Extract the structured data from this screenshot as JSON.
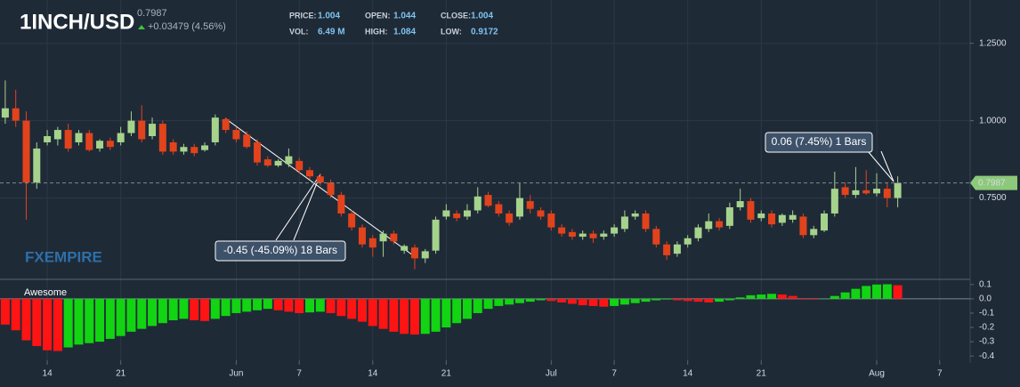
{
  "header": {
    "symbol": "1INCH/USD",
    "price": "0.7987",
    "change": "+0.03479 (4.56%)",
    "stats": [
      {
        "label": "PRICE:",
        "value": "1.004"
      },
      {
        "label": "OPEN:",
        "value": "1.044"
      },
      {
        "label": "CLOSE:",
        "value": "1.004"
      },
      {
        "label": "VOL:",
        "value": "6.49 M"
      },
      {
        "label": "HIGH:",
        "value": "1.084"
      },
      {
        "label": "LOW:",
        "value": "0.9172"
      }
    ],
    "watermark": "FXEMPIRE"
  },
  "chart_data": [
    {
      "type": "candlestick",
      "up_color": "#a6d38c",
      "down_color": "#e2431c",
      "grid": true,
      "open": [
        1.01,
        1.04,
        1.0,
        0.8,
        0.93,
        0.94,
        0.97,
        0.93,
        0.96,
        0.91,
        0.935,
        0.93,
        0.96,
        1.0,
        0.95,
        0.99,
        0.93,
        0.9,
        0.915,
        0.905,
        0.93,
        1.005,
        0.97,
        0.955,
        0.93,
        0.875,
        0.855,
        0.86,
        0.87,
        0.84,
        0.82,
        0.8,
        0.76,
        0.7,
        0.655,
        0.62,
        0.61,
        0.635,
        0.58,
        0.59,
        0.555,
        0.58,
        0.69,
        0.7,
        0.69,
        0.71,
        0.76,
        0.73,
        0.7,
        0.69,
        0.74,
        0.71,
        0.7,
        0.655,
        0.64,
        0.625,
        0.635,
        0.625,
        0.635,
        0.65,
        0.69,
        0.7,
        0.65,
        0.6,
        0.57,
        0.6,
        0.62,
        0.65,
        0.675,
        0.66,
        0.72,
        0.74,
        0.685,
        0.7,
        0.67,
        0.68,
        0.69,
        0.63,
        0.645,
        0.7,
        0.785,
        0.76,
        0.775,
        0.765,
        0.78,
        0.75
      ],
      "high": [
        1.13,
        1.1,
        1.03,
        0.93,
        0.97,
        0.98,
        0.99,
        0.97,
        0.97,
        0.94,
        0.945,
        0.98,
        1.03,
        1.05,
        1.01,
        1.0,
        0.94,
        0.925,
        0.925,
        0.93,
        1.02,
        1.01,
        0.98,
        0.965,
        0.94,
        0.885,
        0.875,
        0.91,
        0.88,
        0.85,
        0.83,
        0.81,
        0.77,
        0.71,
        0.665,
        0.63,
        0.645,
        0.645,
        0.6,
        0.6,
        0.585,
        0.69,
        0.73,
        0.71,
        0.73,
        0.785,
        0.77,
        0.74,
        0.71,
        0.8,
        0.76,
        0.72,
        0.71,
        0.665,
        0.65,
        0.645,
        0.645,
        0.645,
        0.665,
        0.71,
        0.71,
        0.71,
        0.66,
        0.61,
        0.61,
        0.63,
        0.665,
        0.7,
        0.685,
        0.735,
        0.78,
        0.75,
        0.71,
        0.71,
        0.7,
        0.71,
        0.7,
        0.66,
        0.71,
        0.835,
        0.8,
        0.85,
        0.84,
        0.83,
        0.8,
        0.82
      ],
      "low": [
        0.99,
        0.98,
        0.68,
        0.78,
        0.92,
        0.92,
        0.9,
        0.92,
        0.9,
        0.9,
        0.905,
        0.92,
        0.95,
        0.93,
        0.94,
        0.89,
        0.89,
        0.89,
        0.885,
        0.9,
        0.92,
        0.96,
        0.93,
        0.91,
        0.855,
        0.85,
        0.85,
        0.85,
        0.83,
        0.81,
        0.79,
        0.75,
        0.69,
        0.645,
        0.59,
        0.56,
        0.56,
        0.6,
        0.57,
        0.52,
        0.54,
        0.57,
        0.68,
        0.675,
        0.68,
        0.7,
        0.72,
        0.69,
        0.66,
        0.68,
        0.7,
        0.68,
        0.645,
        0.625,
        0.615,
        0.615,
        0.605,
        0.615,
        0.625,
        0.64,
        0.68,
        0.64,
        0.59,
        0.55,
        0.56,
        0.59,
        0.61,
        0.64,
        0.645,
        0.65,
        0.71,
        0.67,
        0.675,
        0.655,
        0.66,
        0.67,
        0.62,
        0.62,
        0.64,
        0.69,
        0.75,
        0.75,
        0.76,
        0.755,
        0.72,
        0.72
      ],
      "close": [
        1.04,
        1.0,
        0.8,
        0.91,
        0.95,
        0.97,
        0.91,
        0.96,
        0.905,
        0.935,
        0.915,
        0.96,
        1.0,
        0.94,
        0.99,
        0.9,
        0.9,
        0.915,
        0.895,
        0.92,
        1.01,
        0.97,
        0.94,
        0.915,
        0.865,
        0.855,
        0.87,
        0.885,
        0.84,
        0.82,
        0.8,
        0.76,
        0.7,
        0.655,
        0.6,
        0.59,
        0.635,
        0.61,
        0.595,
        0.555,
        0.578,
        0.68,
        0.71,
        0.685,
        0.71,
        0.755,
        0.725,
        0.7,
        0.67,
        0.75,
        0.715,
        0.69,
        0.655,
        0.635,
        0.625,
        0.635,
        0.62,
        0.635,
        0.655,
        0.69,
        0.7,
        0.65,
        0.6,
        0.565,
        0.6,
        0.62,
        0.655,
        0.675,
        0.655,
        0.72,
        0.74,
        0.68,
        0.7,
        0.665,
        0.695,
        0.695,
        0.63,
        0.65,
        0.7,
        0.78,
        0.76,
        0.775,
        0.765,
        0.78,
        0.75,
        0.7987
      ],
      "xlim": [
        -0.5,
        91.9
      ],
      "ylim": [
        0.49,
        1.39
      ],
      "yticks": [
        {
          "value": 1.25,
          "label": "1.2500"
        },
        {
          "value": 1.0,
          "label": "1.0000"
        },
        {
          "value": 0.75,
          "label": "0.7500"
        }
      ],
      "xticks": [
        {
          "value": 4,
          "label": "14"
        },
        {
          "value": 11,
          "label": "21"
        },
        {
          "value": 22,
          "label": "Jun"
        },
        {
          "value": 28,
          "label": "7"
        },
        {
          "value": 35,
          "label": "14"
        },
        {
          "value": 42,
          "label": "21"
        },
        {
          "value": 52,
          "label": "Jul"
        },
        {
          "value": 58,
          "label": "7"
        },
        {
          "value": 65,
          "label": "14"
        },
        {
          "value": 72,
          "label": "21"
        },
        {
          "value": 83,
          "label": "Aug"
        },
        {
          "value": 89,
          "label": "7"
        }
      ],
      "last_price": 0.7987,
      "last_price_color": "#8cc97a",
      "annotations": [
        "0.06 (7.45%) 1 Bars",
        "-0.45 (-45.09%) 18 Bars"
      ]
    },
    {
      "type": "bar",
      "title": "Awesome",
      "up_color": "#12d412",
      "down_color": "#ff1414",
      "values": [
        -0.18,
        -0.22,
        -0.29,
        -0.33,
        -0.36,
        -0.365,
        -0.34,
        -0.32,
        -0.31,
        -0.3,
        -0.28,
        -0.26,
        -0.23,
        -0.21,
        -0.19,
        -0.17,
        -0.15,
        -0.14,
        -0.15,
        -0.155,
        -0.14,
        -0.12,
        -0.1,
        -0.09,
        -0.08,
        -0.07,
        -0.08,
        -0.09,
        -0.1,
        -0.095,
        -0.09,
        -0.1,
        -0.12,
        -0.14,
        -0.16,
        -0.19,
        -0.21,
        -0.23,
        -0.245,
        -0.25,
        -0.245,
        -0.23,
        -0.2,
        -0.17,
        -0.14,
        -0.1,
        -0.07,
        -0.05,
        -0.04,
        -0.03,
        -0.02,
        -0.01,
        -0.015,
        -0.025,
        -0.035,
        -0.045,
        -0.05,
        -0.055,
        -0.05,
        -0.04,
        -0.03,
        -0.02,
        -0.01,
        -0.005,
        -0.01,
        -0.015,
        -0.02,
        -0.025,
        -0.02,
        -0.01,
        0.01,
        0.025,
        0.03,
        0.035,
        0.03,
        0.02,
        0.005,
        -0.005,
        -0.002,
        0.02,
        0.045,
        0.07,
        0.09,
        0.1,
        0.102,
        0.095
      ],
      "ylim": [
        -0.43,
        0.13
      ],
      "yticks": [
        0.1,
        {
          "value": 0,
          "label": "0.0"
        },
        -0.1,
        -0.2,
        -0.3,
        -0.4
      ]
    }
  ]
}
